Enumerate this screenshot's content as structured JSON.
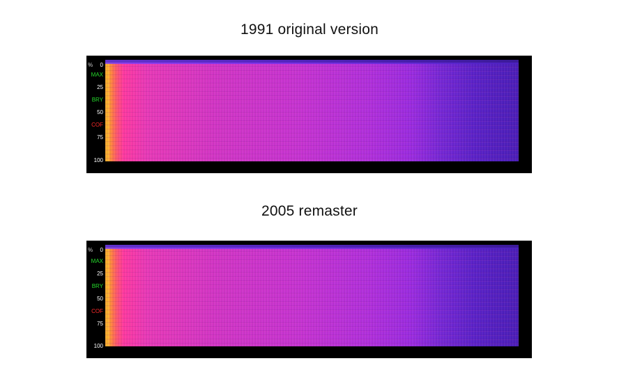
{
  "title_1": "1991 original version",
  "title_2": "2005 remaster",
  "scale": {
    "percent": "%",
    "ticks": [
      "0",
      "25",
      "50",
      "75",
      "100"
    ],
    "markers": [
      {
        "label": "MAX",
        "color": "#25d82b"
      },
      {
        "label": "BRY",
        "color": "#25d82b"
      },
      {
        "label": "COF",
        "color": "#ff2a2a"
      }
    ]
  }
}
